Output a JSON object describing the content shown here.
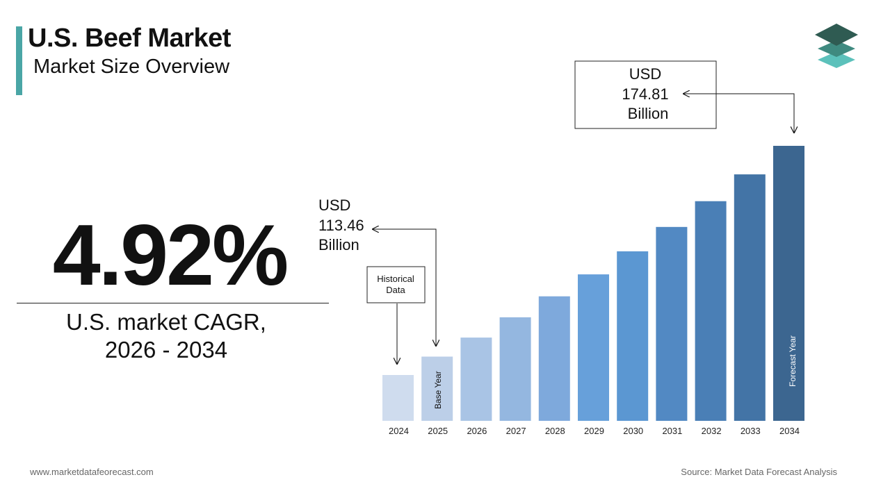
{
  "header": {
    "title": "U.S. Beef Market",
    "subtitle": "Market Size Overview"
  },
  "cagr": {
    "value": "4.92%",
    "label_line1": "U.S. market CAGR,",
    "label_line2": "2026 - 2034"
  },
  "callouts": {
    "base_line1": "USD",
    "base_line2": "113.46",
    "base_line3": "Billion",
    "forecast_line1": "USD",
    "forecast_line2": "174.81",
    "forecast_line3": "Billion",
    "historical_line1": "Historical",
    "historical_line2": "Data",
    "base_year_label": "Base Year",
    "forecast_year_label": "Forecast Year"
  },
  "footer": {
    "website": "www.marketdatafeorecast.com",
    "source": "Source: Market Data Forecast Analysis"
  },
  "colors": {
    "accent": "#4aa6a6",
    "bars": [
      "#cfdcee",
      "#bccfe8",
      "#a9c4e5",
      "#94b7e0",
      "#7ea9dc",
      "#67a0da",
      "#5b97d2",
      "#5289c3",
      "#4a7fb6",
      "#4374a6",
      "#3c6690"
    ]
  },
  "chart_data": {
    "type": "bar",
    "categories": [
      "2024",
      "2025",
      "2026",
      "2027",
      "2028",
      "2029",
      "2030",
      "2031",
      "2032",
      "2033",
      "2034"
    ],
    "values": [
      108.1,
      113.46,
      119.0,
      124.9,
      131.0,
      137.4,
      144.1,
      151.2,
      158.7,
      166.5,
      174.81
    ],
    "ylim": [
      0,
      174.81
    ],
    "grid": false,
    "legend": "none"
  }
}
